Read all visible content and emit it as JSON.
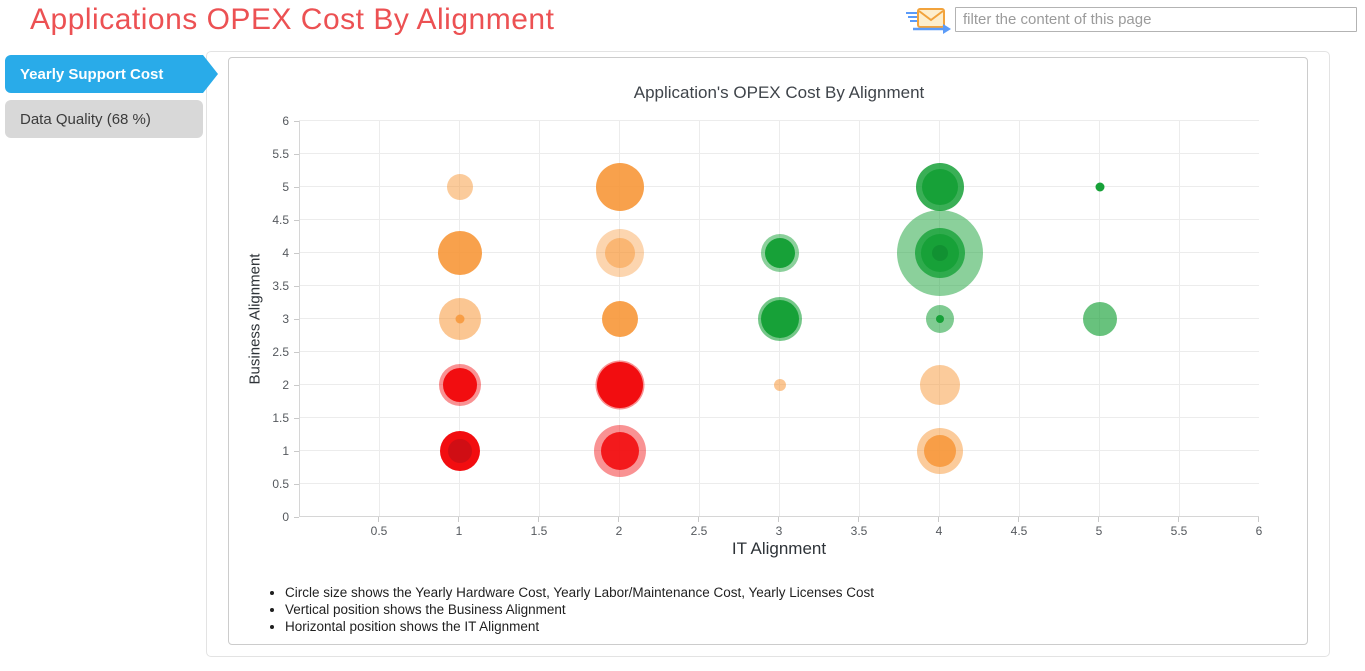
{
  "header": {
    "title": "Applications OPEX Cost By Alignment",
    "filter_placeholder": "filter the content of this page"
  },
  "sidebar": {
    "tabs": [
      {
        "label": "Yearly Support Cost",
        "active": true
      },
      {
        "label": "Data Quality (68 %)",
        "active": false
      }
    ]
  },
  "chart_data": {
    "type": "scatter",
    "subtype": "bubble",
    "title": "Application's OPEX Cost By Alignment",
    "xlabel": "IT Alignment",
    "ylabel": "Business Alignment",
    "xlim": [
      0,
      6
    ],
    "ylim": [
      0,
      6
    ],
    "tick_step": 0.5,
    "grid": true,
    "x_tick_labels": [
      "0.5",
      "1",
      "1.5",
      "2",
      "2.5",
      "3",
      "3.5",
      "4",
      "4.5",
      "5",
      "5.5",
      "6"
    ],
    "y_tick_labels": [
      "6",
      "5.5",
      "5",
      "4.5",
      "4",
      "3.5",
      "3",
      "2.5",
      "2",
      "1.5",
      "1",
      "0.5",
      "0"
    ],
    "colors": {
      "orange": "#F79738",
      "red": "#F20D10",
      "green": "#17A138"
    },
    "points": [
      {
        "x": 1,
        "y": 5,
        "color": "orange",
        "layers": [
          {
            "r": 13,
            "a": 0.5
          }
        ]
      },
      {
        "x": 2,
        "y": 5,
        "color": "orange",
        "layers": [
          {
            "r": 24,
            "a": 0.9
          }
        ]
      },
      {
        "x": 4,
        "y": 5,
        "color": "green",
        "layers": [
          {
            "r": 24,
            "a": 0.85
          },
          {
            "r": 18,
            "a": 1
          }
        ]
      },
      {
        "x": 5,
        "y": 5,
        "color": "green",
        "layers": [
          {
            "r": 4.5,
            "a": 1
          }
        ]
      },
      {
        "x": 1,
        "y": 4,
        "color": "orange",
        "layers": [
          {
            "r": 22,
            "a": 0.9
          }
        ]
      },
      {
        "x": 2,
        "y": 4,
        "color": "orange",
        "layers": [
          {
            "r": 24,
            "a": 0.4
          },
          {
            "r": 15,
            "a": 0.5
          }
        ]
      },
      {
        "x": 3,
        "y": 4,
        "color": "green",
        "layers": [
          {
            "r": 19,
            "a": 0.5
          },
          {
            "r": 15,
            "a": 1
          }
        ]
      },
      {
        "x": 4,
        "y": 4,
        "color": "green",
        "layers": [
          {
            "r": 43,
            "a": 0.5
          },
          {
            "r": 25,
            "a": 0.8
          },
          {
            "r": 19,
            "a": 1
          },
          {
            "r": 8,
            "a": 0.4,
            "c": "#0B7A2B"
          }
        ]
      },
      {
        "x": 1,
        "y": 3,
        "color": "orange",
        "layers": [
          {
            "r": 21,
            "a": 0.55
          },
          {
            "r": 4.5,
            "a": 0.85
          }
        ]
      },
      {
        "x": 2,
        "y": 3,
        "color": "orange",
        "layers": [
          {
            "r": 18,
            "a": 0.9
          }
        ]
      },
      {
        "x": 3,
        "y": 3,
        "color": "green",
        "layers": [
          {
            "r": 22,
            "a": 0.6
          },
          {
            "r": 19,
            "a": 1
          }
        ]
      },
      {
        "x": 4,
        "y": 3,
        "color": "green",
        "layers": [
          {
            "r": 14,
            "a": 0.55
          },
          {
            "r": 4,
            "a": 1
          }
        ]
      },
      {
        "x": 5,
        "y": 3,
        "color": "green",
        "layers": [
          {
            "r": 17,
            "a": 0.65
          }
        ]
      },
      {
        "x": 1,
        "y": 2,
        "color": "red",
        "layers": [
          {
            "r": 21,
            "a": 0.45
          },
          {
            "r": 17,
            "a": 1
          }
        ]
      },
      {
        "x": 2,
        "y": 2,
        "color": "red",
        "layers": [
          {
            "r": 24.5,
            "a": 0.45
          },
          {
            "r": 23,
            "a": 1
          }
        ]
      },
      {
        "x": 3,
        "y": 2,
        "color": "orange",
        "layers": [
          {
            "r": 6,
            "a": 0.55
          }
        ]
      },
      {
        "x": 4,
        "y": 2,
        "color": "orange",
        "layers": [
          {
            "r": 20,
            "a": 0.5
          }
        ]
      },
      {
        "x": 1,
        "y": 1,
        "color": "red",
        "layers": [
          {
            "r": 20,
            "a": 1
          },
          {
            "r": 12,
            "a": 1,
            "c": "#D00E14"
          }
        ]
      },
      {
        "x": 2,
        "y": 1,
        "color": "red",
        "layers": [
          {
            "r": 26,
            "a": 0.45
          },
          {
            "r": 19,
            "a": 0.9
          }
        ]
      },
      {
        "x": 4,
        "y": 1,
        "color": "orange",
        "layers": [
          {
            "r": 23,
            "a": 0.5
          },
          {
            "r": 16,
            "a": 0.85
          }
        ]
      }
    ],
    "notes": [
      "Circle size shows the Yearly Hardware Cost, Yearly Labor/Maintenance Cost, Yearly Licenses Cost",
      "Vertical position shows the Business Alignment",
      "Horizontal position shows the IT Alignment"
    ]
  }
}
